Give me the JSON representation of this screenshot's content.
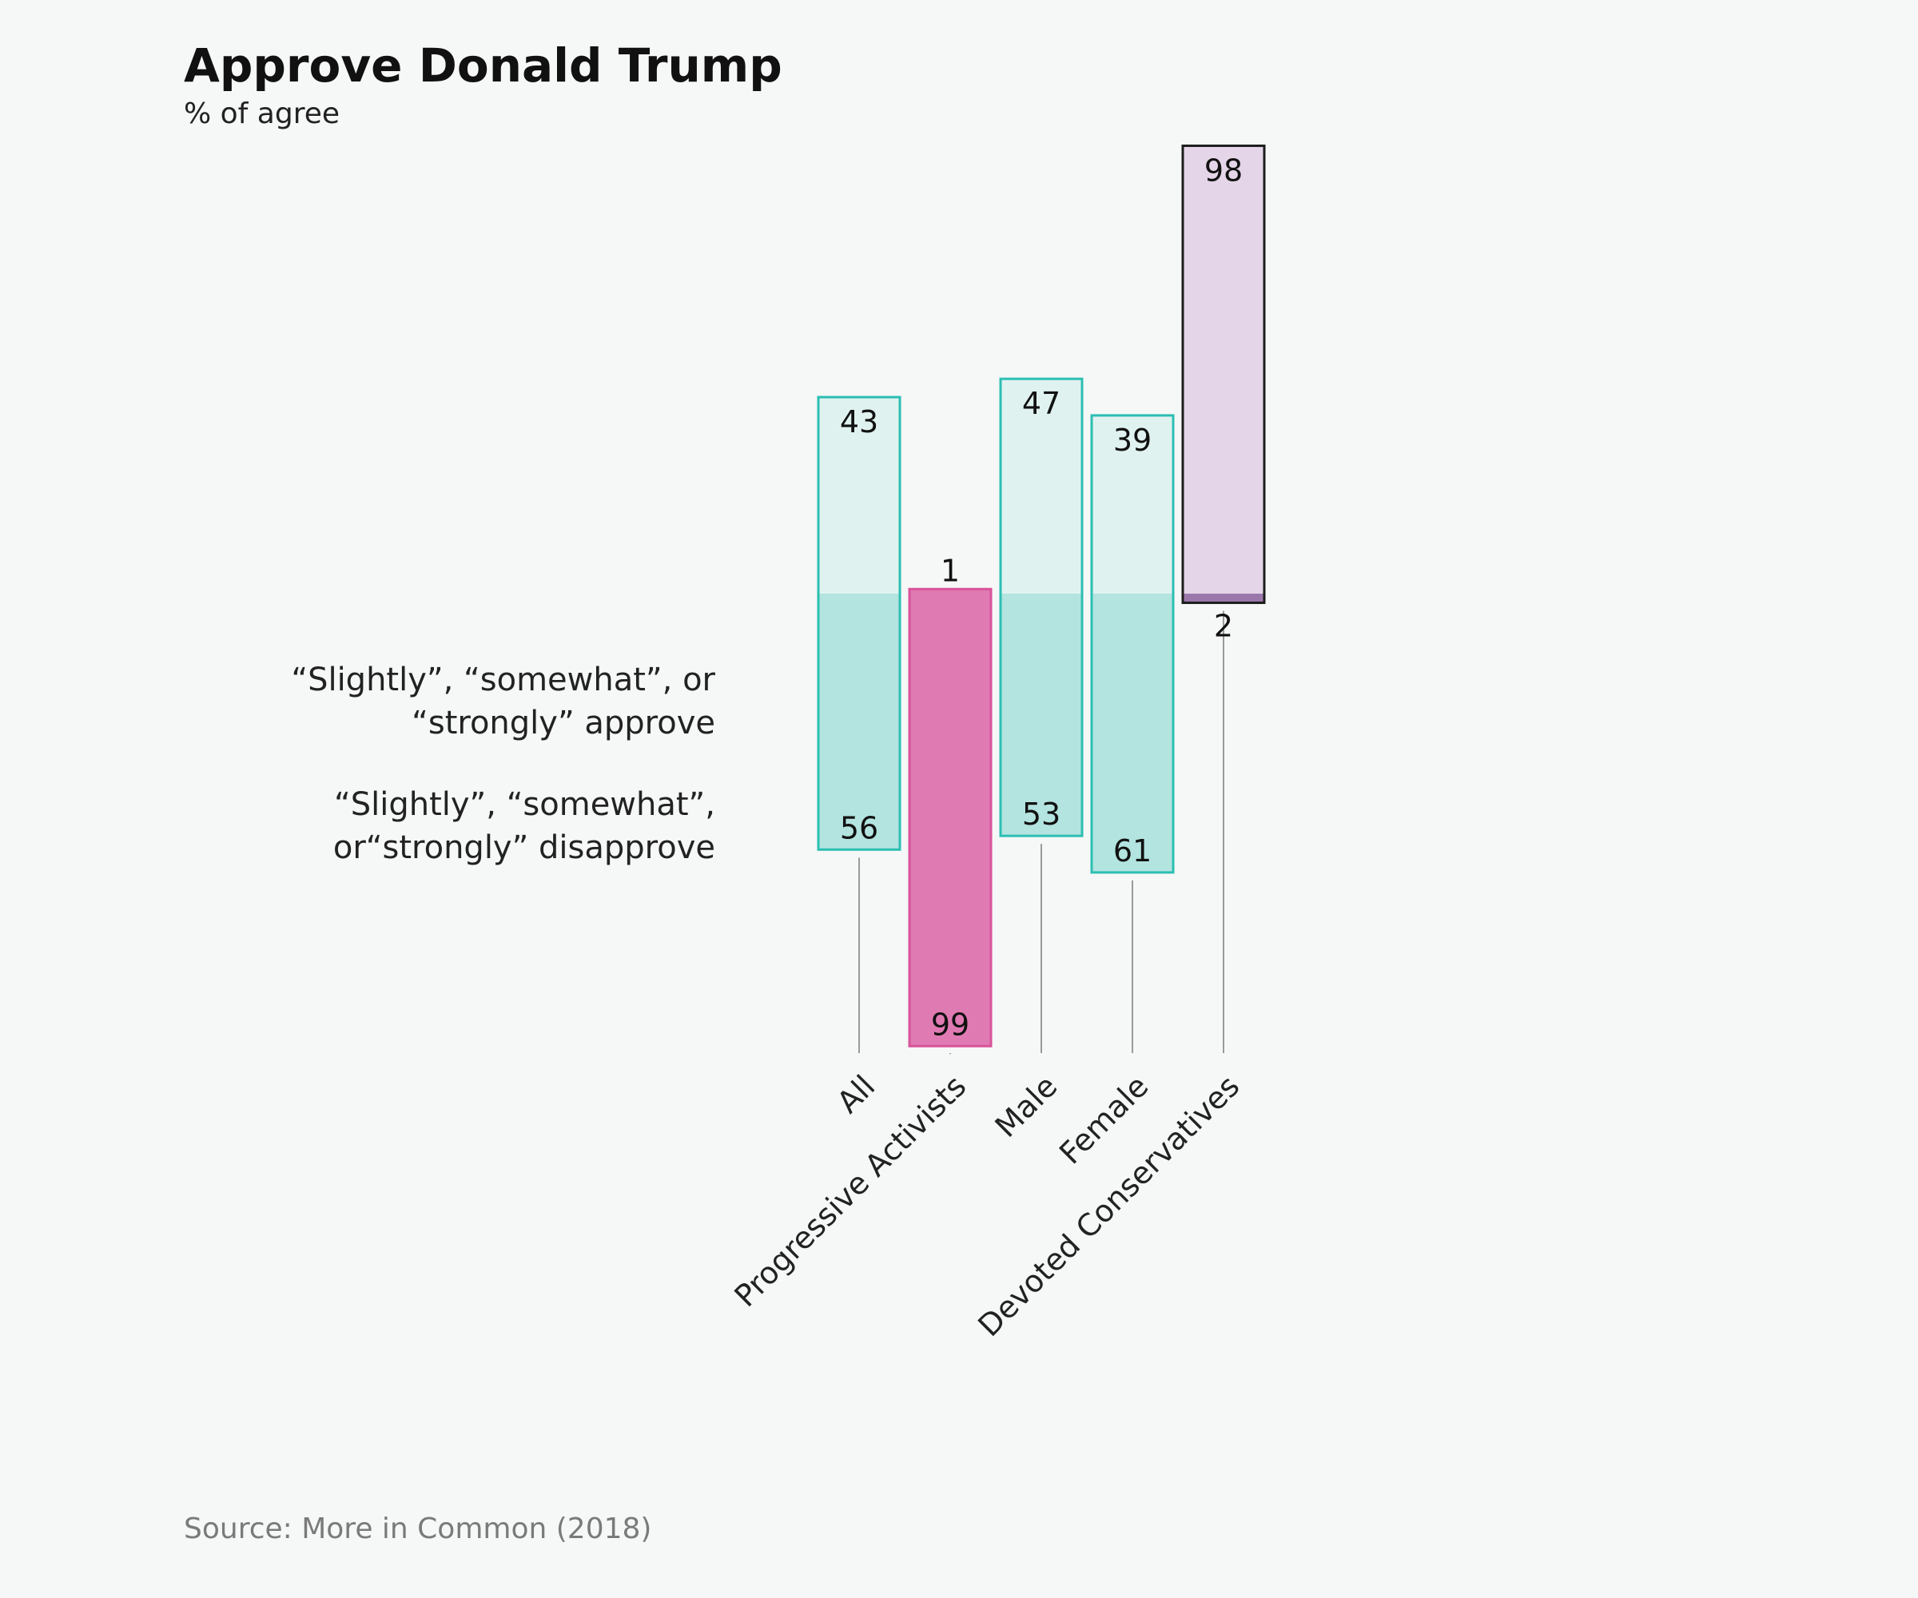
{
  "chart_data": {
    "type": "bar",
    "title": "Approve Donald Trump",
    "subtitle": "% of agree",
    "source": "Source: More in Common (2018)",
    "legend": {
      "approve": [
        "“Slightly”, “somewhat”, or",
        "“strongly” approve"
      ],
      "disapprove": [
        "“Slightly”, “somewhat”,",
        "or“strongly” disapprove"
      ]
    },
    "categories": [
      "All",
      "Progressive Activists",
      "Male",
      "Female",
      "Devoted Conservatives"
    ],
    "series": [
      {
        "name": "Approve",
        "values": [
          43,
          1,
          47,
          39,
          98
        ]
      },
      {
        "name": "Disapprove",
        "values": [
          56,
          99,
          53,
          61,
          2
        ]
      }
    ],
    "colors": {
      "default_border": "#2bbfb2",
      "default_approve_fill": "#e0f2f0",
      "default_disapprove_fill": "#b3e4df",
      "progressive_border": "#d8539a",
      "progressive_fill": "#e07ab2",
      "conservative_border": "#1c1c1c",
      "conservative_fill": "#e4d5e8",
      "conservative_disapprove_fill": "#9b78ab",
      "stem": "#9a9a9a"
    }
  }
}
